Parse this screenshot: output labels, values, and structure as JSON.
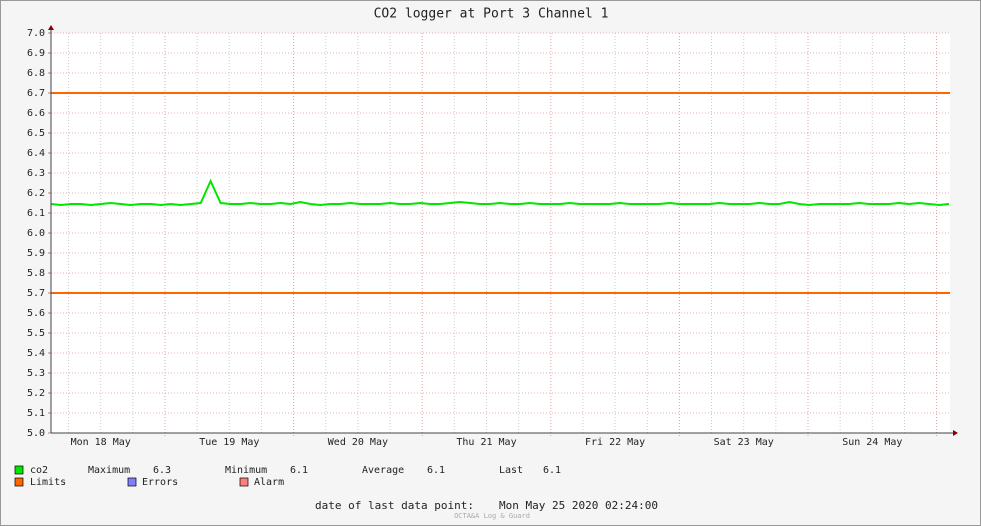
{
  "chart_data": {
    "type": "line",
    "title": "CO2 logger at Port 3 Channel 1",
    "ylim": [
      5,
      7
    ],
    "yticks": [
      {
        "value": 5,
        "label": "5.0"
      },
      5.1,
      5.2,
      5.3,
      5.4,
      5.5,
      5.6,
      5.7,
      5.8,
      5.9,
      {
        "value": 6,
        "label": "6.0"
      },
      6.1,
      6.2,
      6.3,
      6.4,
      6.5,
      6.6,
      6.7,
      6.8,
      6.9,
      {
        "value": 7,
        "label": "7.0"
      }
    ],
    "grid": true,
    "x_labels": [
      "Mon 18 May",
      "Tue 19 May",
      "Wed 20 May",
      "Thu 21 May",
      "Fri 22 May",
      "Sat 23 May",
      "Sun 24 May"
    ],
    "series": [
      {
        "name": "co2",
        "color": "#00e600",
        "values": [
          6.145,
          6.14,
          6.145,
          6.145,
          6.14,
          6.145,
          6.15,
          6.145,
          6.14,
          6.145,
          6.145,
          6.14,
          6.145,
          6.14,
          6.145,
          6.15,
          6.26,
          6.15,
          6.145,
          6.145,
          6.15,
          6.145,
          6.145,
          6.15,
          6.145,
          6.155,
          6.145,
          6.14,
          6.145,
          6.145,
          6.15,
          6.145,
          6.145,
          6.145,
          6.15,
          6.145,
          6.145,
          6.15,
          6.145,
          6.145,
          6.15,
          6.155,
          6.15,
          6.145,
          6.145,
          6.15,
          6.145,
          6.145,
          6.15,
          6.145,
          6.145,
          6.145,
          6.15,
          6.145,
          6.145,
          6.145,
          6.145,
          6.15,
          6.145,
          6.145,
          6.145,
          6.145,
          6.15,
          6.145,
          6.145,
          6.145,
          6.145,
          6.15,
          6.145,
          6.145,
          6.145,
          6.15,
          6.145,
          6.145,
          6.155,
          6.145,
          6.14,
          6.145,
          6.145,
          6.145,
          6.145,
          6.15,
          6.145,
          6.145,
          6.145,
          6.15,
          6.145,
          6.15,
          6.145,
          6.14,
          6.145
        ]
      }
    ],
    "limits": {
      "name": "Limits",
      "color": "#ff6600",
      "values": [
        6.7,
        5.7
      ]
    },
    "legend_extra": [
      {
        "name": "Errors",
        "color": "#7f7fff"
      },
      {
        "name": "Alarm",
        "color": "#ff7f7f"
      }
    ],
    "stats": [
      {
        "label": "Maximum",
        "value": 6.3
      },
      {
        "label": "Minimum",
        "value": 6.1
      },
      {
        "label": "Average",
        "value": 6.1
      },
      {
        "label": "Last",
        "value": 6.1
      }
    ],
    "footer": "date of last data point:",
    "last_date": "Mon May 25 2020 02:24:00",
    "watermark": "OCTA&A Log & Guard"
  }
}
